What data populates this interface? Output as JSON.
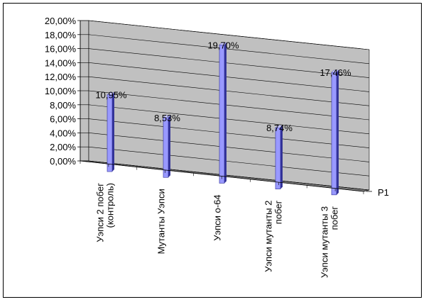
{
  "chart_data": {
    "type": "bar",
    "categories": [
      [
        "Уэпси 2 побег",
        "(контроль)"
      ],
      [
        "Мутанты Уэпси"
      ],
      [
        "Уэпси о-64"
      ],
      [
        "Уэпси мутанты 2",
        "побег"
      ],
      [
        "Уэпси мутанты 3",
        "побег"
      ]
    ],
    "series": [
      {
        "name": "Р1",
        "values": [
          10.95,
          8.53,
          19.7,
          8.74,
          17.46
        ]
      }
    ],
    "data_labels": [
      "10,95%",
      "8,53%",
      "19,70%",
      "8,74%",
      "17,46%"
    ],
    "y_ticks": [
      "0,00%",
      "2,00%",
      "4,00%",
      "6,00%",
      "8,00%",
      "10,00%",
      "12,00%",
      "14,00%",
      "16,00%",
      "18,00%",
      "20,00%"
    ],
    "ylim": [
      0,
      20
    ],
    "series_axis_label": "Р1",
    "grid": true,
    "colors": {
      "wall": "#c0c0c0",
      "floor": "#808080",
      "bar_front": "#9999ff",
      "bar_side": "#333399",
      "bar_top": "#ccccff"
    }
  }
}
